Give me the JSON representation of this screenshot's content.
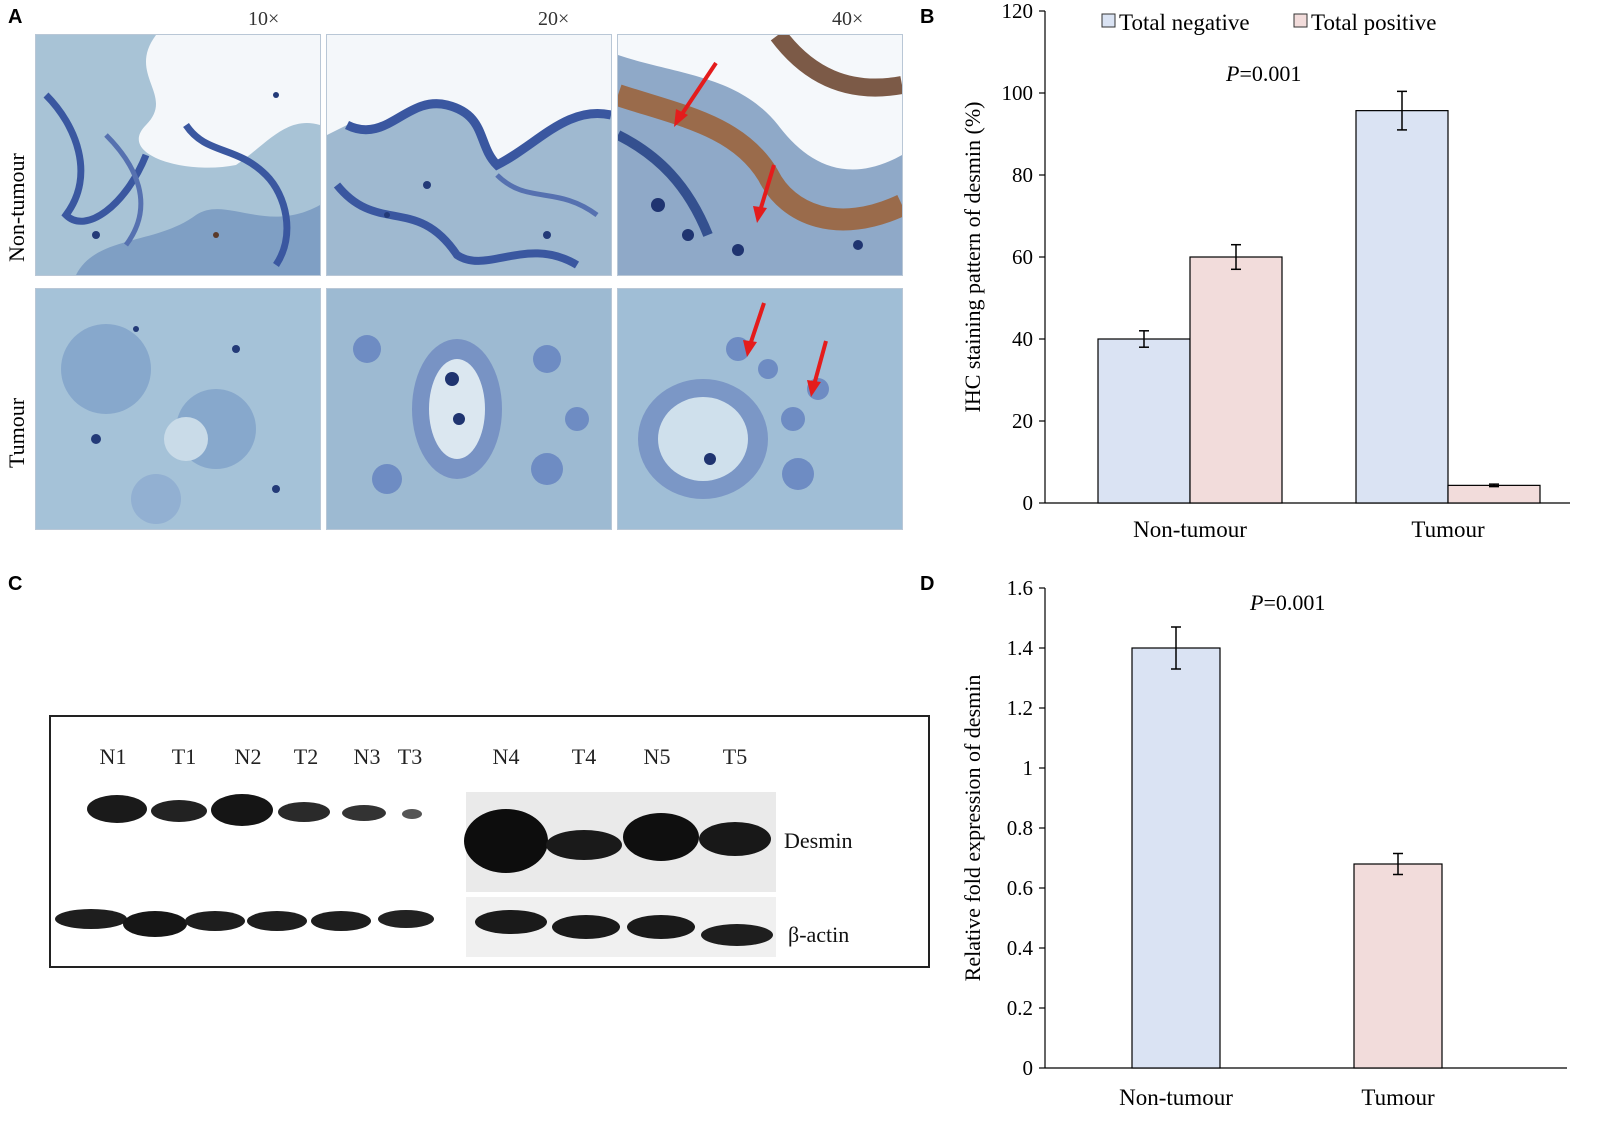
{
  "panels": {
    "a": "A",
    "b": "B",
    "c": "C",
    "d": "D"
  },
  "histology": {
    "magnifications": [
      "10×",
      "20×",
      "40×"
    ],
    "rows": [
      "Non-tumour",
      "Tumour"
    ]
  },
  "western_blot": {
    "lanes_left": [
      "N1",
      "T1",
      "N2",
      "T2",
      "N3",
      "T3"
    ],
    "lanes_right": [
      "N4",
      "T4",
      "N5",
      "T5"
    ],
    "bands": [
      "Desmin",
      "β-actin"
    ]
  },
  "colors": {
    "negative": "#dae3f3",
    "positive": "#f2dcdb",
    "arrow": "#e41c1c",
    "bar_border": "#000000"
  },
  "chart_data": [
    {
      "type": "bar",
      "panel": "B",
      "categories": [
        "Non-tumour",
        "Tumour"
      ],
      "series": [
        {
          "name": "Total negative",
          "values": [
            40,
            95.7
          ],
          "errors": [
            2,
            4.7
          ]
        },
        {
          "name": "Total positive",
          "values": [
            60,
            4.3
          ],
          "errors": [
            3,
            0.3
          ]
        }
      ],
      "ylabel": "IHC staining pattern of desmin (%)",
      "ylim": [
        0,
        120
      ],
      "yticks": [
        "0",
        "20",
        "40",
        "60",
        "80",
        "100",
        "120"
      ],
      "annotation": {
        "italic": "P",
        "rest": "=0.001"
      },
      "legend": "top",
      "grid": false
    },
    {
      "type": "bar",
      "panel": "D",
      "categories": [
        "Non-tumour",
        "Tumour"
      ],
      "values": [
        1.4,
        0.68
      ],
      "errors": [
        0.07,
        0.035
      ],
      "ylabel": "Relative fold expression of desmin",
      "ylim": [
        0,
        1.6
      ],
      "yticks": [
        "0",
        "0.2",
        "0.4",
        "0.6",
        "0.8",
        "1",
        "1.2",
        "1.4",
        "1.6"
      ],
      "annotation": {
        "italic": "P",
        "rest": "=0.001"
      },
      "grid": false
    }
  ]
}
